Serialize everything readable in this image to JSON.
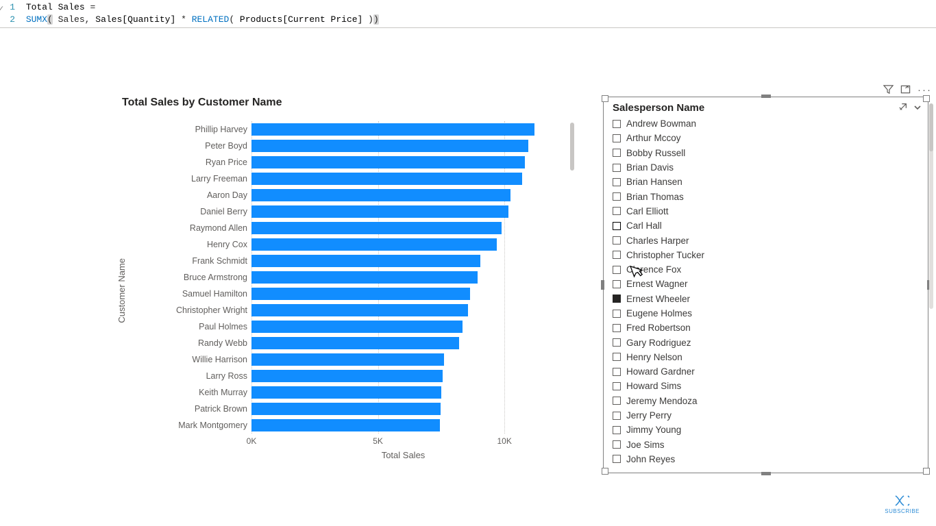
{
  "formula": {
    "line1_num": "1",
    "line2_num": "2",
    "measure_name": "Total Sales",
    "equals": " =",
    "func_sumx": "SUMX",
    "open1": "(",
    "arg_table": " Sales, ",
    "arg_col1": "Sales[Quantity]",
    "times": " * ",
    "func_related": "RELATED",
    "open2": "( ",
    "arg_col2": "Products[Current Price]",
    "close2": " )",
    "close1": ")"
  },
  "chart": {
    "title": "Total Sales by Customer Name",
    "y_axis_label": "Customer Name",
    "x_axis_label": "Total Sales",
    "type": "bar-horizontal",
    "bar_color": "#118dff",
    "grid_color": "#c8c6c4",
    "label_color": "#605e5c",
    "title_fontsize": 16,
    "label_fontsize": 12.5,
    "x_domain_max": 12000,
    "x_ticks": [
      {
        "value": 0,
        "label": "0K"
      },
      {
        "value": 5000,
        "label": "5K"
      },
      {
        "value": 10000,
        "label": "10K"
      }
    ],
    "bars": [
      {
        "label": "Phillip Harvey",
        "value": 11200
      },
      {
        "label": "Peter Boyd",
        "value": 10950
      },
      {
        "label": "Ryan Price",
        "value": 10800
      },
      {
        "label": "Larry Freeman",
        "value": 10700
      },
      {
        "label": "Aaron Day",
        "value": 10250
      },
      {
        "label": "Daniel Berry",
        "value": 10150
      },
      {
        "label": "Raymond Allen",
        "value": 9900
      },
      {
        "label": "Henry Cox",
        "value": 9700
      },
      {
        "label": "Frank Schmidt",
        "value": 9050
      },
      {
        "label": "Bruce Armstrong",
        "value": 8950
      },
      {
        "label": "Samuel Hamilton",
        "value": 8650
      },
      {
        "label": "Christopher Wright",
        "value": 8550
      },
      {
        "label": "Paul Holmes",
        "value": 8350
      },
      {
        "label": "Randy Webb",
        "value": 8200
      },
      {
        "label": "Willie Harrison",
        "value": 7600
      },
      {
        "label": "Larry Ross",
        "value": 7550
      },
      {
        "label": "Keith Murray",
        "value": 7500
      },
      {
        "label": "Patrick Brown",
        "value": 7480
      },
      {
        "label": "Mark Montgomery",
        "value": 7450
      }
    ]
  },
  "slicer": {
    "title": "Salesperson Name",
    "checkbox_border": "#605e5c",
    "checkbox_checked_bg": "#252423",
    "items": [
      {
        "label": "Andrew Bowman",
        "checked": false
      },
      {
        "label": "Arthur Mccoy",
        "checked": false
      },
      {
        "label": "Bobby Russell",
        "checked": false
      },
      {
        "label": "Brian Davis",
        "checked": false
      },
      {
        "label": "Brian Hansen",
        "checked": false
      },
      {
        "label": "Brian Thomas",
        "checked": false
      },
      {
        "label": "Carl Elliott",
        "checked": false
      },
      {
        "label": "Carl Hall",
        "checked": false,
        "hover": true
      },
      {
        "label": "Charles Harper",
        "checked": false
      },
      {
        "label": "Christopher Tucker",
        "checked": false
      },
      {
        "label": "Clarence Fox",
        "checked": false
      },
      {
        "label": "Ernest Wagner",
        "checked": false
      },
      {
        "label": "Ernest Wheeler",
        "checked": true
      },
      {
        "label": "Eugene Holmes",
        "checked": false
      },
      {
        "label": "Fred Robertson",
        "checked": false
      },
      {
        "label": "Gary Rodriguez",
        "checked": false
      },
      {
        "label": "Henry Nelson",
        "checked": false
      },
      {
        "label": "Howard Gardner",
        "checked": false
      },
      {
        "label": "Howard Sims",
        "checked": false
      },
      {
        "label": "Jeremy Mendoza",
        "checked": false
      },
      {
        "label": "Jerry Perry",
        "checked": false
      },
      {
        "label": "Jimmy Young",
        "checked": false
      },
      {
        "label": "Joe Sims",
        "checked": false
      },
      {
        "label": "John Reyes",
        "checked": false
      }
    ]
  },
  "badge": {
    "label": "SUBSCRIBE"
  }
}
